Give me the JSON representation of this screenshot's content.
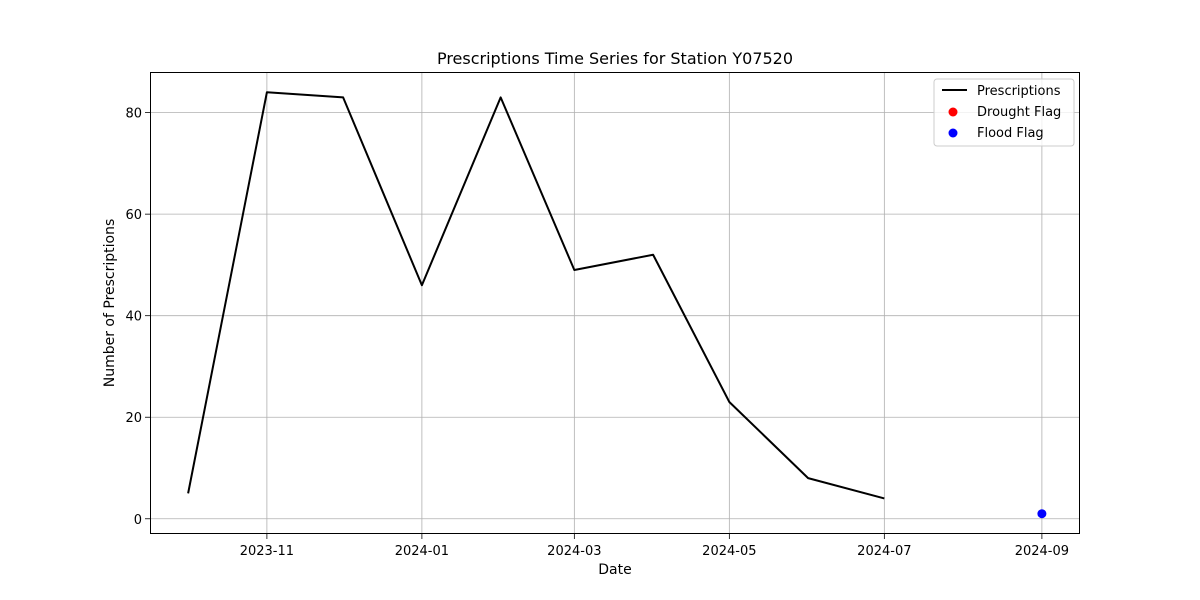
{
  "chart_data": {
    "type": "line",
    "title": "Prescriptions Time Series for Station Y07520",
    "xlabel": "Date",
    "ylabel": "Number of Prescriptions",
    "x_ticks": [
      "2023-11",
      "2024-01",
      "2024-03",
      "2024-05",
      "2024-07",
      "2024-09"
    ],
    "y_ticks": [
      0,
      20,
      40,
      60,
      80
    ],
    "xlim": [
      "2023-09-16",
      "2024-09-16"
    ],
    "ylim": [
      -3,
      88
    ],
    "grid": true,
    "legend_position": "top-right",
    "series": [
      {
        "name": "Prescriptions",
        "kind": "line",
        "color": "#000000",
        "points": [
          {
            "x": "2023-10-01",
            "y": 5
          },
          {
            "x": "2023-11-01",
            "y": 84
          },
          {
            "x": "2023-12-01",
            "y": 83
          },
          {
            "x": "2024-01-01",
            "y": 46
          },
          {
            "x": "2024-02-01",
            "y": 83
          },
          {
            "x": "2024-03-01",
            "y": 49
          },
          {
            "x": "2024-04-01",
            "y": 52
          },
          {
            "x": "2024-05-01",
            "y": 23
          },
          {
            "x": "2024-06-01",
            "y": 8
          },
          {
            "x": "2024-07-01",
            "y": 4
          }
        ]
      },
      {
        "name": "Drought Flag",
        "kind": "scatter",
        "color": "#ff0000",
        "points": []
      },
      {
        "name": "Flood Flag",
        "kind": "scatter",
        "color": "#0000ff",
        "points": [
          {
            "x": "2024-09-01",
            "y": 1
          }
        ]
      }
    ]
  }
}
